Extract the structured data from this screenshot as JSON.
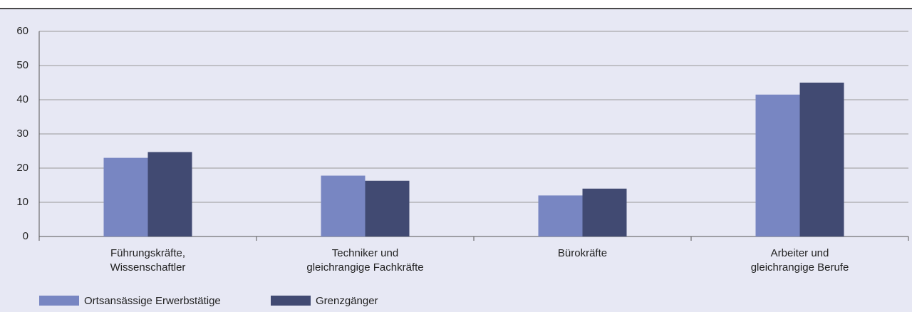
{
  "chart_data": {
    "type": "bar",
    "categories": [
      "Führungskräfte,\nWissenschaftler",
      "Techniker und\ngleichrangige Fachkräfte",
      "Bürokräfte",
      "Arbeiter und\ngleichrangige Berufe"
    ],
    "series": [
      {
        "name": "Ortsansässige Erwerbstätige",
        "color": "#7886c2",
        "values": [
          23,
          17.8,
          12,
          41.5
        ]
      },
      {
        "name": "Grenzgänger",
        "color": "#414a72",
        "values": [
          24.7,
          16.3,
          14,
          45
        ]
      }
    ],
    "ylim": [
      0,
      60
    ],
    "yticks": [
      0,
      10,
      20,
      30,
      40,
      50,
      60
    ],
    "grid": true
  }
}
